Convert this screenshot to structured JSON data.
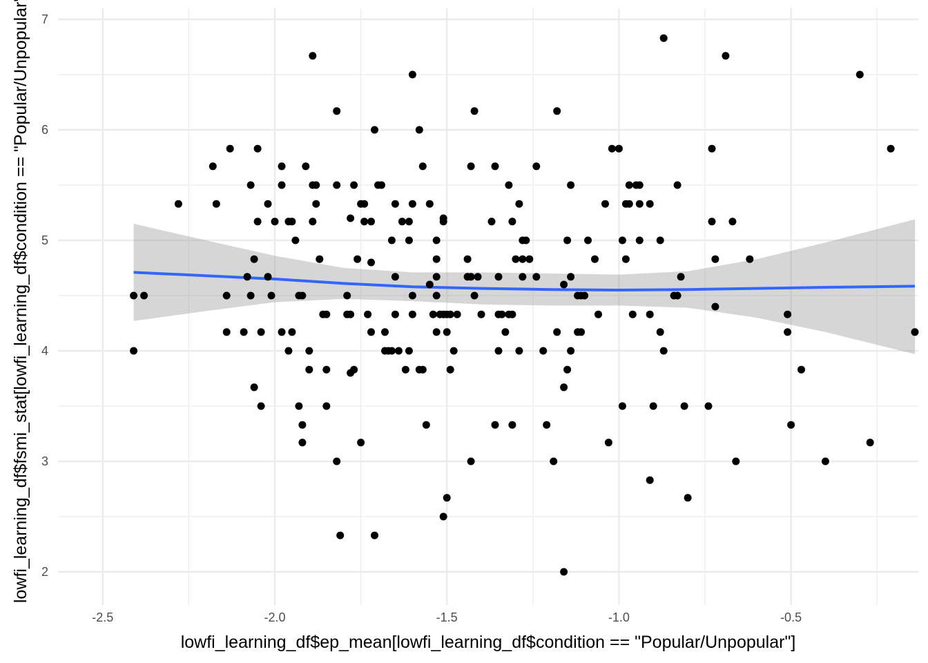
{
  "chart_data": {
    "type": "scatter",
    "title": "",
    "xlabel": "lowfi_learning_df$ep_mean[lowfi_learning_df$condition == \"Popular/Unpopular\"]",
    "ylabel": "lowfi_learning_df$fsmi_stat[lowfi_learning_df$condition == \"Popular/Unpopular\"]",
    "xlim": [
      -2.63,
      -0.13
    ],
    "ylim": [
      1.7,
      7.1
    ],
    "x_ticks": [
      -2.5,
      -2.0,
      -1.5,
      -1.0,
      -0.5
    ],
    "x_tick_labels": [
      "-2.5",
      "-2.0",
      "-1.5",
      "-1.0",
      "-0.5"
    ],
    "y_ticks": [
      2,
      3,
      4,
      5,
      6,
      7
    ],
    "y_tick_labels": [
      "2",
      "3",
      "4",
      "5",
      "6",
      "7"
    ],
    "grid": true,
    "colors": {
      "points": "#000000",
      "smooth_line": "#3366ff",
      "ci_band": "#999999",
      "grid": "#ebebeb"
    },
    "points": [
      [
        -2.41,
        4.5
      ],
      [
        -2.38,
        4.5
      ],
      [
        -2.41,
        4.0
      ],
      [
        -2.28,
        5.33
      ],
      [
        -2.18,
        5.67
      ],
      [
        -2.17,
        5.33
      ],
      [
        -2.14,
        4.5
      ],
      [
        -2.14,
        4.17
      ],
      [
        -2.13,
        5.83
      ],
      [
        -2.09,
        4.17
      ],
      [
        -2.08,
        4.67
      ],
      [
        -2.07,
        5.5
      ],
      [
        -2.07,
        4.5
      ],
      [
        -2.06,
        3.67
      ],
      [
        -2.06,
        4.83
      ],
      [
        -2.05,
        5.83
      ],
      [
        -2.05,
        5.17
      ],
      [
        -2.04,
        4.17
      ],
      [
        -2.04,
        3.5
      ],
      [
        -2.02,
        4.67
      ],
      [
        -2.02,
        5.33
      ],
      [
        -2.01,
        4.5
      ],
      [
        -2.0,
        5.17
      ],
      [
        -1.98,
        5.67
      ],
      [
        -1.98,
        5.5
      ],
      [
        -1.98,
        4.17
      ],
      [
        -1.96,
        5.17
      ],
      [
        -1.96,
        4.0
      ],
      [
        -1.95,
        5.17
      ],
      [
        -1.95,
        4.17
      ],
      [
        -1.94,
        5.0
      ],
      [
        -1.93,
        4.5
      ],
      [
        -1.93,
        3.5
      ],
      [
        -1.92,
        3.17
      ],
      [
        -1.92,
        4.5
      ],
      [
        -1.92,
        3.33
      ],
      [
        -1.91,
        5.67
      ],
      [
        -1.9,
        4.0
      ],
      [
        -1.9,
        3.83
      ],
      [
        -1.89,
        5.5
      ],
      [
        -1.89,
        5.17
      ],
      [
        -1.89,
        6.67
      ],
      [
        -1.88,
        5.5
      ],
      [
        -1.88,
        5.33
      ],
      [
        -1.87,
        4.83
      ],
      [
        -1.86,
        4.33
      ],
      [
        -1.85,
        4.33
      ],
      [
        -1.85,
        3.83
      ],
      [
        -1.85,
        3.5
      ],
      [
        -1.82,
        5.5
      ],
      [
        -1.82,
        6.17
      ],
      [
        -1.82,
        3.0
      ],
      [
        -1.81,
        2.33
      ],
      [
        -1.79,
        4.33
      ],
      [
        -1.79,
        4.5
      ],
      [
        -1.78,
        3.8
      ],
      [
        -1.78,
        5.2
      ],
      [
        -1.78,
        4.33
      ],
      [
        -1.77,
        5.5
      ],
      [
        -1.77,
        3.83
      ],
      [
        -1.76,
        4.83
      ],
      [
        -1.75,
        5.33
      ],
      [
        -1.75,
        3.17
      ],
      [
        -1.74,
        5.33
      ],
      [
        -1.74,
        5.17
      ],
      [
        -1.73,
        4.33
      ],
      [
        -1.72,
        4.17
      ],
      [
        -1.72,
        4.8
      ],
      [
        -1.72,
        5.17
      ],
      [
        -1.71,
        2.33
      ],
      [
        -1.71,
        6.0
      ],
      [
        -1.7,
        5.5
      ],
      [
        -1.69,
        5.5
      ],
      [
        -1.68,
        4.0
      ],
      [
        -1.68,
        4.17
      ],
      [
        -1.67,
        4.0
      ],
      [
        -1.66,
        4.0
      ],
      [
        -1.66,
        5.0
      ],
      [
        -1.65,
        5.33
      ],
      [
        -1.65,
        4.67
      ],
      [
        -1.65,
        4.33
      ],
      [
        -1.64,
        4.0
      ],
      [
        -1.63,
        5.17
      ],
      [
        -1.62,
        3.83
      ],
      [
        -1.61,
        5.0
      ],
      [
        -1.61,
        4.0
      ],
      [
        -1.61,
        5.17
      ],
      [
        -1.6,
        4.33
      ],
      [
        -1.6,
        4.5
      ],
      [
        -1.6,
        5.33
      ],
      [
        -1.6,
        6.5
      ],
      [
        -1.58,
        6.0
      ],
      [
        -1.58,
        3.83
      ],
      [
        -1.57,
        5.67
      ],
      [
        -1.57,
        3.83
      ],
      [
        -1.56,
        3.33
      ],
      [
        -1.55,
        4.6
      ],
      [
        -1.55,
        5.33
      ],
      [
        -1.54,
        4.33
      ],
      [
        -1.53,
        4.17
      ],
      [
        -1.53,
        4.67
      ],
      [
        -1.53,
        5.0
      ],
      [
        -1.53,
        4.5
      ],
      [
        -1.53,
        4.83
      ],
      [
        -1.52,
        4.33
      ],
      [
        -1.51,
        5.17
      ],
      [
        -1.51,
        5.2
      ],
      [
        -1.51,
        4.33
      ],
      [
        -1.51,
        2.5
      ],
      [
        -1.5,
        2.67
      ],
      [
        -1.5,
        4.17
      ],
      [
        -1.5,
        4.33
      ],
      [
        -1.49,
        4.33
      ],
      [
        -1.49,
        3.83
      ],
      [
        -1.48,
        4.0
      ],
      [
        -1.47,
        4.33
      ],
      [
        -1.44,
        4.67
      ],
      [
        -1.44,
        4.83
      ],
      [
        -1.43,
        4.67
      ],
      [
        -1.43,
        5.67
      ],
      [
        -1.43,
        3.0
      ],
      [
        -1.42,
        4.5
      ],
      [
        -1.42,
        6.17
      ],
      [
        -1.41,
        4.67
      ],
      [
        -1.4,
        4.33
      ],
      [
        -1.37,
        5.17
      ],
      [
        -1.36,
        5.67
      ],
      [
        -1.36,
        3.33
      ],
      [
        -1.35,
        4.0
      ],
      [
        -1.35,
        4.33
      ],
      [
        -1.35,
        4.67
      ],
      [
        -1.34,
        4.33
      ],
      [
        -1.33,
        4.17
      ],
      [
        -1.32,
        4.33
      ],
      [
        -1.32,
        5.5
      ],
      [
        -1.31,
        4.33
      ],
      [
        -1.31,
        5.17
      ],
      [
        -1.31,
        3.33
      ],
      [
        -1.3,
        4.83
      ],
      [
        -1.29,
        4.0
      ],
      [
        -1.29,
        5.33
      ],
      [
        -1.28,
        5.0
      ],
      [
        -1.28,
        4.67
      ],
      [
        -1.28,
        4.83
      ],
      [
        -1.27,
        5.0
      ],
      [
        -1.26,
        4.83
      ],
      [
        -1.24,
        5.67
      ],
      [
        -1.24,
        4.67
      ],
      [
        -1.22,
        4.0
      ],
      [
        -1.21,
        3.33
      ],
      [
        -1.19,
        3.0
      ],
      [
        -1.18,
        4.17
      ],
      [
        -1.18,
        6.17
      ],
      [
        -1.16,
        2.0
      ],
      [
        -1.16,
        3.67
      ],
      [
        -1.16,
        4.6
      ],
      [
        -1.15,
        5.0
      ],
      [
        -1.15,
        3.83
      ],
      [
        -1.14,
        5.5
      ],
      [
        -1.14,
        4.0
      ],
      [
        -1.14,
        4.67
      ],
      [
        -1.12,
        4.17
      ],
      [
        -1.12,
        4.5
      ],
      [
        -1.11,
        4.5
      ],
      [
        -1.11,
        4.17
      ],
      [
        -1.1,
        4.5
      ],
      [
        -1.09,
        5.0
      ],
      [
        -1.07,
        4.83
      ],
      [
        -1.06,
        4.33
      ],
      [
        -1.04,
        5.33
      ],
      [
        -1.03,
        3.17
      ],
      [
        -1.02,
        5.83
      ],
      [
        -1.0,
        5.83
      ],
      [
        -0.99,
        3.5
      ],
      [
        -0.99,
        5.0
      ],
      [
        -0.98,
        5.33
      ],
      [
        -0.98,
        4.83
      ],
      [
        -0.97,
        5.5
      ],
      [
        -0.97,
        5.33
      ],
      [
        -0.96,
        4.33
      ],
      [
        -0.95,
        5.5
      ],
      [
        -0.94,
        5.5
      ],
      [
        -0.94,
        5.0
      ],
      [
        -0.94,
        5.33
      ],
      [
        -0.91,
        4.33
      ],
      [
        -0.91,
        2.83
      ],
      [
        -0.91,
        5.33
      ],
      [
        -0.9,
        3.5
      ],
      [
        -0.88,
        5.0
      ],
      [
        -0.88,
        4.17
      ],
      [
        -0.87,
        6.83
      ],
      [
        -0.87,
        4.0
      ],
      [
        -0.84,
        4.5
      ],
      [
        -0.83,
        4.5
      ],
      [
        -0.83,
        5.5
      ],
      [
        -0.82,
        4.67
      ],
      [
        -0.81,
        3.5
      ],
      [
        -0.8,
        2.67
      ],
      [
        -0.74,
        3.5
      ],
      [
        -0.73,
        5.17
      ],
      [
        -0.73,
        5.83
      ],
      [
        -0.72,
        4.83
      ],
      [
        -0.72,
        4.4
      ],
      [
        -0.69,
        6.67
      ],
      [
        -0.67,
        5.17
      ],
      [
        -0.66,
        3.0
      ],
      [
        -0.62,
        4.83
      ],
      [
        -0.51,
        4.33
      ],
      [
        -0.51,
        4.17
      ],
      [
        -0.5,
        3.33
      ],
      [
        -0.47,
        3.83
      ],
      [
        -0.4,
        3.0
      ],
      [
        -0.3,
        6.5
      ],
      [
        -0.27,
        3.17
      ],
      [
        -0.21,
        5.83
      ],
      [
        -0.14,
        4.17
      ]
    ],
    "smooth": {
      "method": "loess",
      "x": [
        -2.41,
        -2.2,
        -2.0,
        -1.8,
        -1.6,
        -1.4,
        -1.2,
        -1.0,
        -0.8,
        -0.6,
        -0.4,
        -0.14
      ],
      "y": [
        4.71,
        4.68,
        4.65,
        4.61,
        4.58,
        4.565,
        4.555,
        4.55,
        4.555,
        4.565,
        4.575,
        4.585
      ],
      "ci_lower": [
        4.27,
        4.36,
        4.44,
        4.47,
        4.45,
        4.42,
        4.41,
        4.41,
        4.39,
        4.3,
        4.17,
        3.97
      ],
      "ci_upper": [
        5.15,
        5.0,
        4.86,
        4.75,
        4.71,
        4.71,
        4.7,
        4.69,
        4.72,
        4.83,
        4.98,
        5.19
      ]
    }
  }
}
